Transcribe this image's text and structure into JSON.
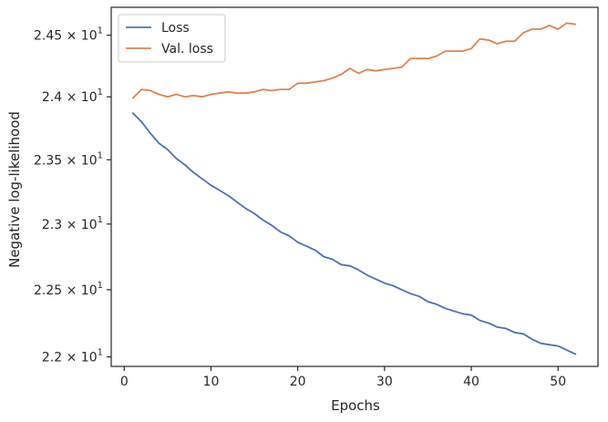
{
  "chart_data": {
    "type": "line",
    "xlabel": "Epochs",
    "ylabel": "Negative log-likelihood",
    "xlim": [
      -1.5,
      54.6
    ],
    "ylim": [
      21.93,
      24.73
    ],
    "y_scale": "log",
    "grid": false,
    "legend": "top-left",
    "xticks": [
      0,
      10,
      20,
      30,
      40,
      50
    ],
    "xtick_labels": [
      "0",
      "10",
      "20",
      "30",
      "40",
      "50"
    ],
    "yticks": [
      22.0,
      22.5,
      23.0,
      23.5,
      24.0,
      24.5
    ],
    "ytick_labels": [
      {
        "mantissa": "2.2",
        "base": "10",
        "exp": "1"
      },
      {
        "mantissa": "2.25",
        "base": "10",
        "exp": "1"
      },
      {
        "mantissa": "2.3",
        "base": "10",
        "exp": "1"
      },
      {
        "mantissa": "2.35",
        "base": "10",
        "exp": "1"
      },
      {
        "mantissa": "2.4",
        "base": "10",
        "exp": "1"
      },
      {
        "mantissa": "2.45",
        "base": "10",
        "exp": "1"
      }
    ],
    "x": [
      1,
      2,
      3,
      4,
      5,
      6,
      7,
      8,
      9,
      10,
      11,
      12,
      13,
      14,
      15,
      16,
      17,
      18,
      19,
      20,
      21,
      22,
      23,
      24,
      25,
      26,
      27,
      28,
      29,
      30,
      31,
      32,
      33,
      34,
      35,
      36,
      37,
      38,
      39,
      40,
      41,
      42,
      43,
      44,
      45,
      46,
      47,
      48,
      49,
      50,
      51,
      52
    ],
    "series": [
      {
        "name": "Loss",
        "color": "#4c72b0",
        "values": [
          23.87,
          23.8,
          23.71,
          23.63,
          23.58,
          23.51,
          23.46,
          23.4,
          23.35,
          23.3,
          23.26,
          23.22,
          23.17,
          23.12,
          23.08,
          23.03,
          22.99,
          22.94,
          22.91,
          22.86,
          22.83,
          22.8,
          22.75,
          22.73,
          22.69,
          22.68,
          22.65,
          22.61,
          22.58,
          22.55,
          22.53,
          22.5,
          22.47,
          22.45,
          22.41,
          22.39,
          22.36,
          22.34,
          22.32,
          22.31,
          22.27,
          22.25,
          22.22,
          22.21,
          22.18,
          22.17,
          22.13,
          22.1,
          22.09,
          22.08,
          22.05,
          22.02
        ]
      },
      {
        "name": "Val. loss",
        "color": "#dd8452",
        "values": [
          23.99,
          24.06,
          24.05,
          24.02,
          24.0,
          24.02,
          24.0,
          24.01,
          24.0,
          24.02,
          24.03,
          24.04,
          24.03,
          24.03,
          24.04,
          24.06,
          24.05,
          24.06,
          24.06,
          24.11,
          24.11,
          24.12,
          24.13,
          24.15,
          24.18,
          24.23,
          24.19,
          24.22,
          24.21,
          24.22,
          24.23,
          24.24,
          24.31,
          24.31,
          24.31,
          24.33,
          24.37,
          24.37,
          24.37,
          24.39,
          24.47,
          24.46,
          24.43,
          24.45,
          24.45,
          24.52,
          24.55,
          24.55,
          24.58,
          24.55,
          24.6,
          24.59
        ]
      }
    ]
  }
}
